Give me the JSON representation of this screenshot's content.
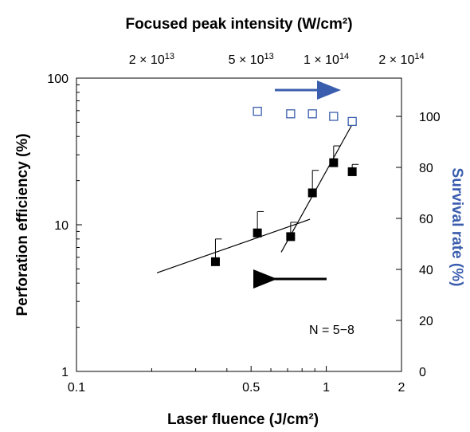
{
  "chart_data": {
    "type": "scatter",
    "x_axis": {
      "label": "Laser fluence (J/cm²)",
      "scale": "log",
      "range": [
        0.1,
        2
      ],
      "ticks": [
        0.1,
        0.5,
        1,
        2
      ],
      "tick_labels": [
        "0.1",
        "0.5",
        "1",
        "2"
      ]
    },
    "top_axis": {
      "label": "Focused peak intensity (W/cm²)",
      "ticks": [
        {
          "fluence": 0.2,
          "base": "2 × 10",
          "exp": "13"
        },
        {
          "fluence": 0.5,
          "base": "5 × 10",
          "exp": "13"
        },
        {
          "fluence": 1.0,
          "base": "1 × 10",
          "exp": "14"
        },
        {
          "fluence": 2.0,
          "base": "2 × 10",
          "exp": "14"
        }
      ]
    },
    "y_left": {
      "label": "Perforation efficiency (%)",
      "scale": "log",
      "range": [
        1,
        100
      ],
      "ticks": [
        1,
        10,
        100
      ],
      "tick_labels": [
        "1",
        "10",
        "100"
      ]
    },
    "y_right": {
      "label": "Survival rate (%)",
      "label_color": "#3a5dae",
      "range": [
        0,
        115
      ],
      "ticks": [
        0,
        20,
        40,
        60,
        80,
        100
      ],
      "tick_labels": [
        "0",
        "20",
        "40",
        "60",
        "80",
        "100"
      ]
    },
    "series": [
      {
        "axis": "left",
        "marker": "filled-square",
        "color": "#000000",
        "points": [
          {
            "x": 0.36,
            "y": 5.6,
            "err": 2.4
          },
          {
            "x": 0.53,
            "y": 8.8,
            "err": 3.5
          },
          {
            "x": 0.72,
            "y": 8.3,
            "err": 2.1
          },
          {
            "x": 0.88,
            "y": 16.5,
            "err": 7.0
          },
          {
            "x": 1.07,
            "y": 26.5,
            "err": 8.0
          },
          {
            "x": 1.27,
            "y": 23.0,
            "err": 2.8
          }
        ],
        "fit_lines": [
          {
            "x": [
              0.21,
              0.86
            ],
            "y": [
              4.7,
              10.9
            ]
          },
          {
            "x": [
              0.66,
              1.3
            ],
            "y": [
              6.5,
              52
            ]
          }
        ]
      },
      {
        "axis": "right",
        "marker": "open-square",
        "color": "#3a5dae",
        "points": [
          {
            "x": 0.53,
            "y": 102
          },
          {
            "x": 0.72,
            "y": 101
          },
          {
            "x": 0.88,
            "y": 101
          },
          {
            "x": 1.07,
            "y": 100
          },
          {
            "x": 1.27,
            "y": 98
          }
        ]
      }
    ],
    "annotations": {
      "text": "N = 5−8",
      "arrow_colors": {
        "left_axis": "#000000",
        "right_axis": "#3a5dae"
      }
    }
  }
}
